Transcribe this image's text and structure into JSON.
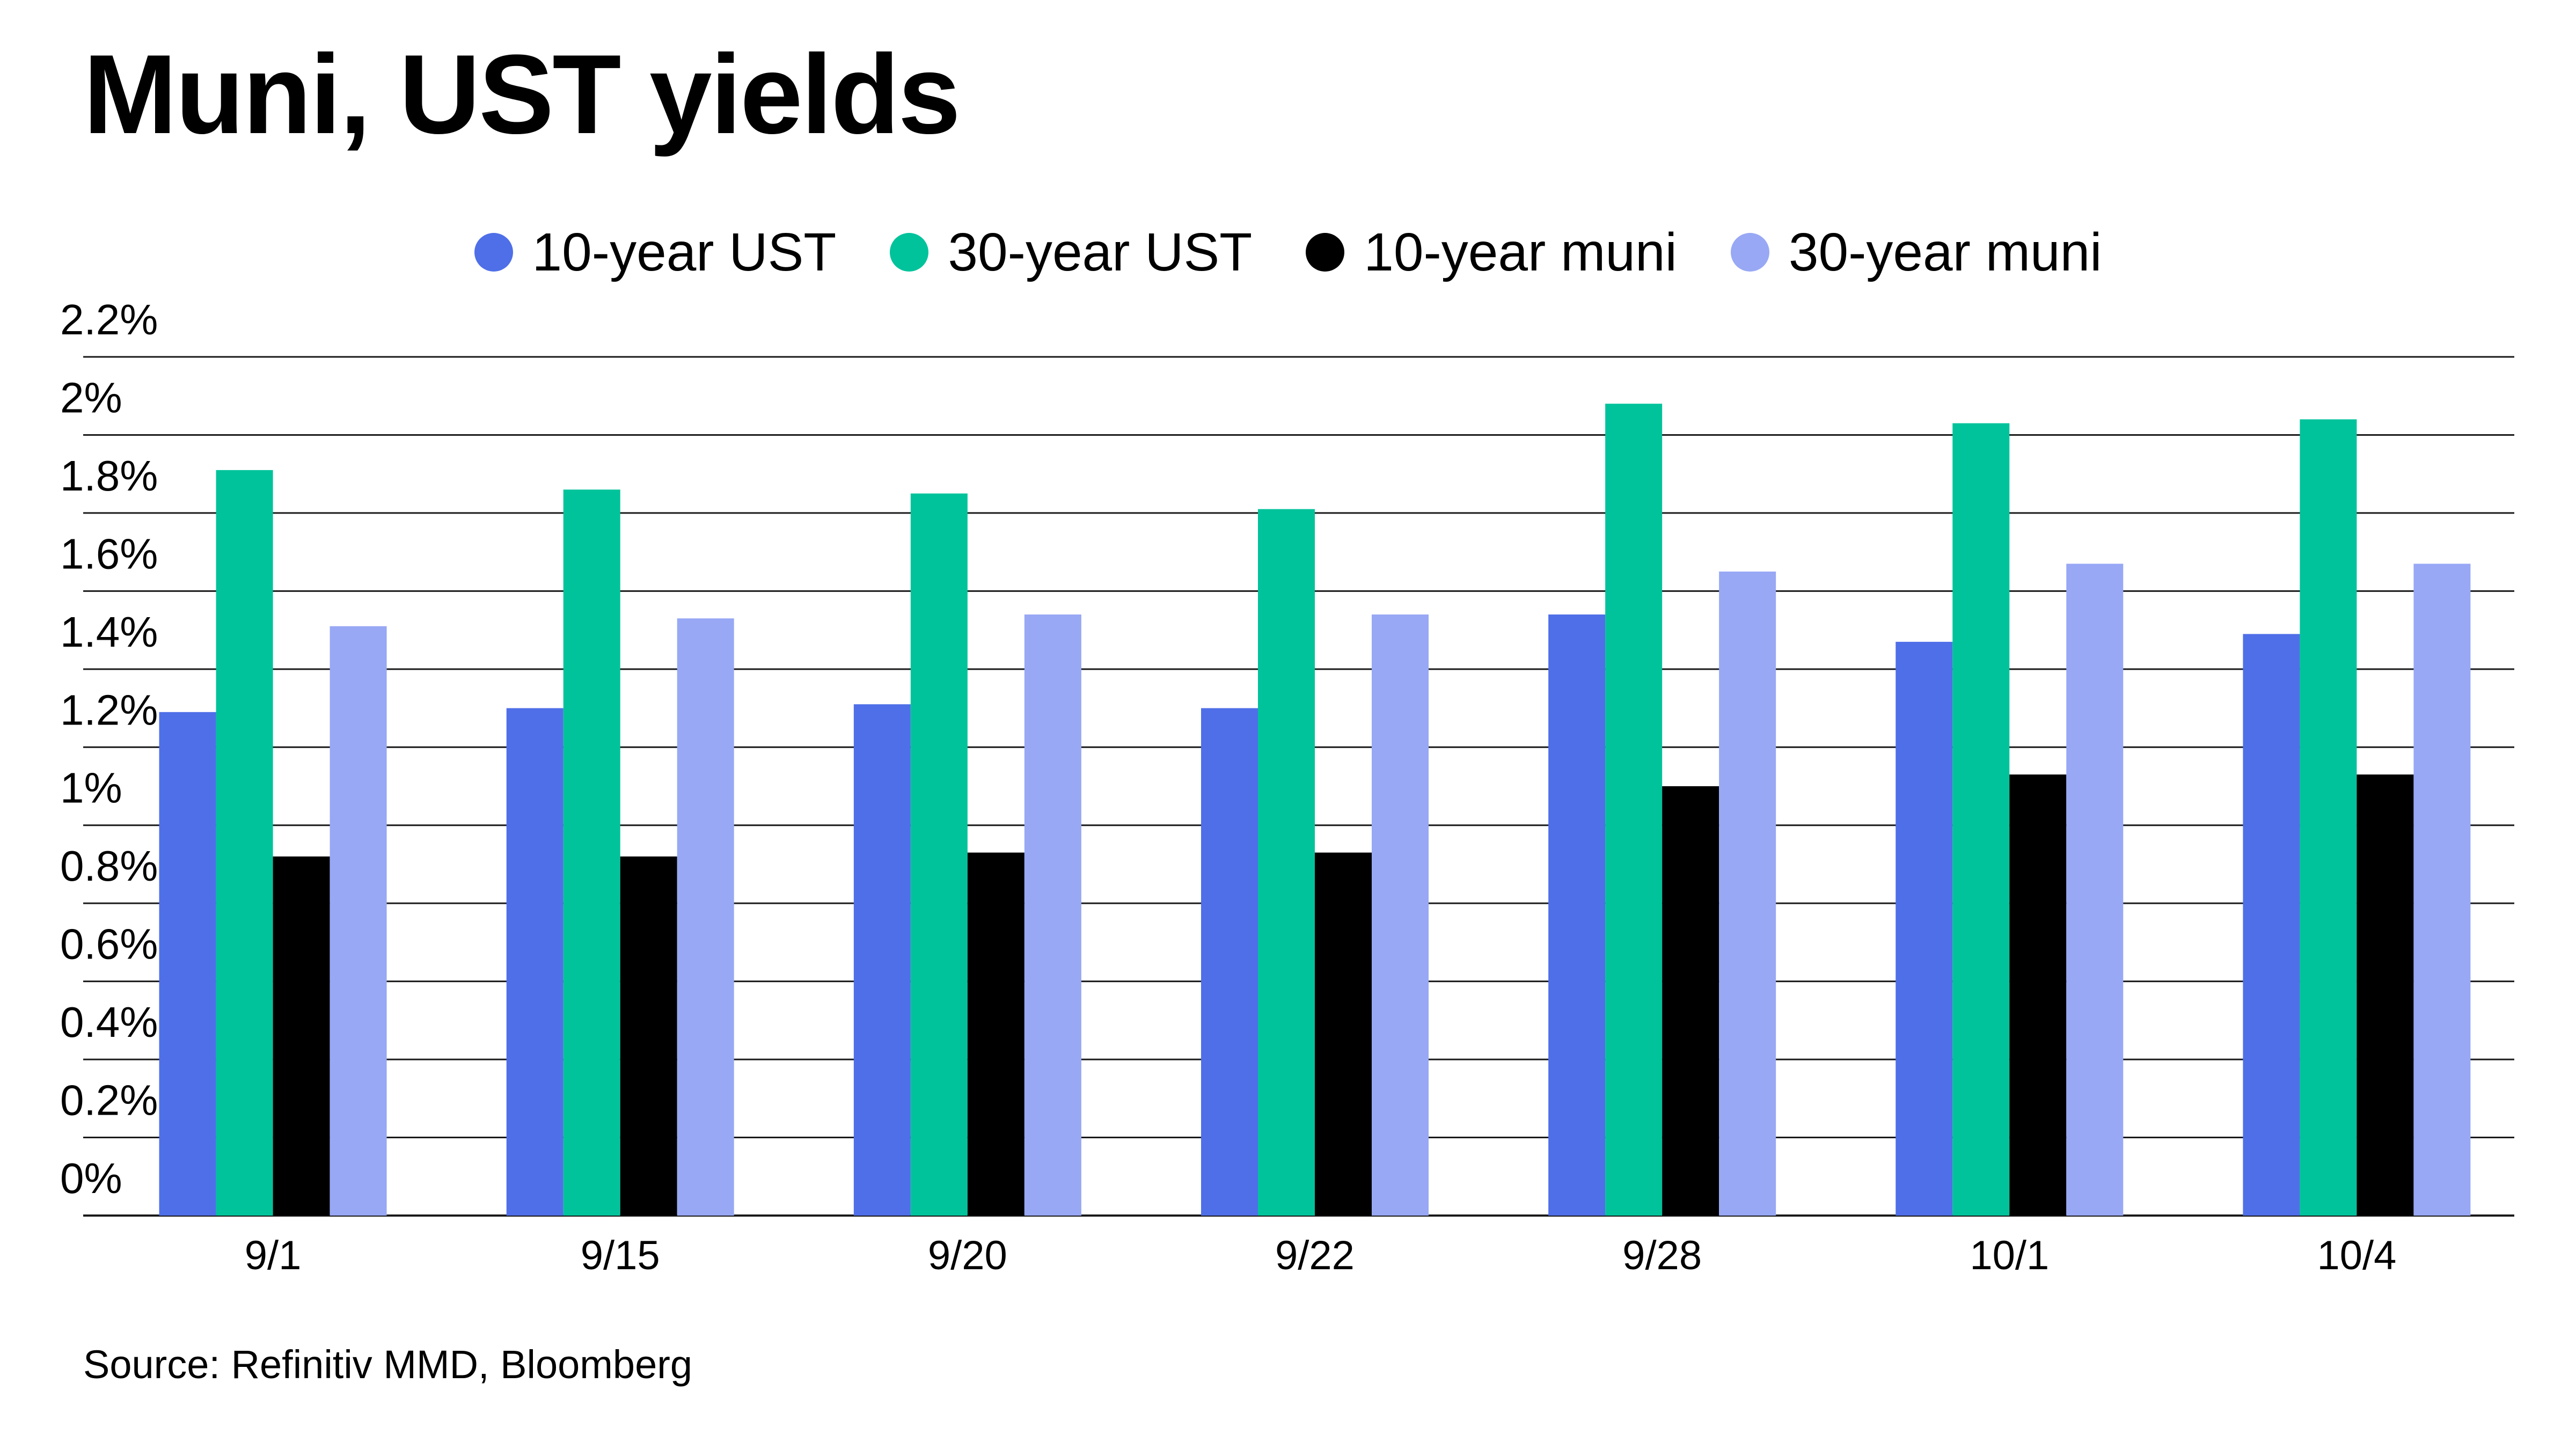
{
  "chart_data": {
    "type": "bar",
    "title": "Muni, UST yields",
    "source": "Source: Refinitiv MMD, Bloomberg",
    "categories": [
      "9/1",
      "9/15",
      "9/20",
      "9/22",
      "9/28",
      "10/1",
      "10/4"
    ],
    "series": [
      {
        "name": "10-year UST",
        "color": "#4f6fe8",
        "values": [
          1.29,
          1.3,
          1.31,
          1.3,
          1.54,
          1.47,
          1.49
        ]
      },
      {
        "name": "30-year UST",
        "color": "#00c39b",
        "values": [
          1.91,
          1.86,
          1.85,
          1.81,
          2.08,
          2.03,
          2.04
        ]
      },
      {
        "name": "10-year muni",
        "color": "#000000",
        "values": [
          0.92,
          0.92,
          0.93,
          0.93,
          1.1,
          1.13,
          1.13
        ]
      },
      {
        "name": "30-year muni",
        "color": "#98a8f5",
        "values": [
          1.51,
          1.53,
          1.54,
          1.54,
          1.65,
          1.67,
          1.67
        ]
      }
    ],
    "y_ticks": [
      "0%",
      "0.2%",
      "0.4%",
      "0.6%",
      "0.8%",
      "1%",
      "1.2%",
      "1.4%",
      "1.6%",
      "1.8%",
      "2%",
      "2.2%"
    ],
    "ylim": [
      0,
      2.2
    ],
    "grid": true,
    "legend_position": "top"
  }
}
